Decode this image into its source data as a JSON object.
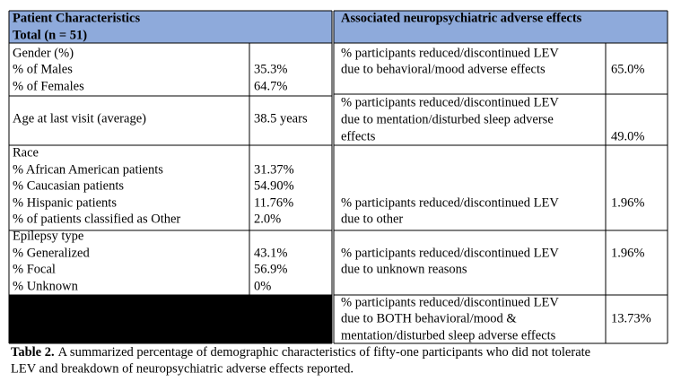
{
  "table": {
    "header": {
      "left": [
        "Patient Characteristics",
        "Total (n = 51)"
      ],
      "right": "Associated neuropsychiatric adverse effects"
    },
    "left_rows": [
      {
        "label": [
          "Gender (%)",
          "% of Males",
          "% of Females"
        ],
        "values": [
          "35.3%",
          "64.7%"
        ]
      },
      {
        "label": [
          "Age at last visit (average)"
        ],
        "values": [
          "38.5 years"
        ]
      },
      {
        "label": [
          "Race",
          "% African American patients",
          "% Caucasian patients",
          "% Hispanic patients",
          "% of patients classified as Other"
        ],
        "values": [
          "31.37%",
          "54.90%",
          "11.76%",
          "2.0%"
        ]
      },
      {
        "label": [
          "Epilepsy type",
          "% Generalized",
          "% Focal",
          "% Unknown"
        ],
        "values": [
          "43.1%",
          "56.9%",
          "0%"
        ]
      }
    ],
    "right_rows": [
      {
        "label": [
          "% participants reduced/discontinued LEV",
          "due to behavioral/mood adverse effects"
        ],
        "value": "65.0%"
      },
      {
        "label": [
          "% participants reduced/discontinued LEV",
          "due to mentation/disturbed sleep adverse",
          "effects"
        ],
        "value": "49.0%"
      },
      {
        "label": [
          "% participants reduced/discontinued LEV",
          "due to other"
        ],
        "value": "1.96%"
      },
      {
        "label": [
          "% participants reduced/discontinued LEV",
          "due to unknown reasons"
        ],
        "value": "1.96%"
      },
      {
        "label": [
          "% participants reduced/discontinued LEV",
          "due to BOTH behavioral/mood &",
          "mentation/disturbed sleep adverse effects"
        ],
        "value": "13.73%"
      }
    ]
  },
  "caption": {
    "label": "Table 2.",
    "lines": [
      "A summarized percentage of demographic characteristics of fifty-one participants who did not tolerate",
      "LEV and breakdown of neuropsychiatric adverse effects reported."
    ]
  }
}
